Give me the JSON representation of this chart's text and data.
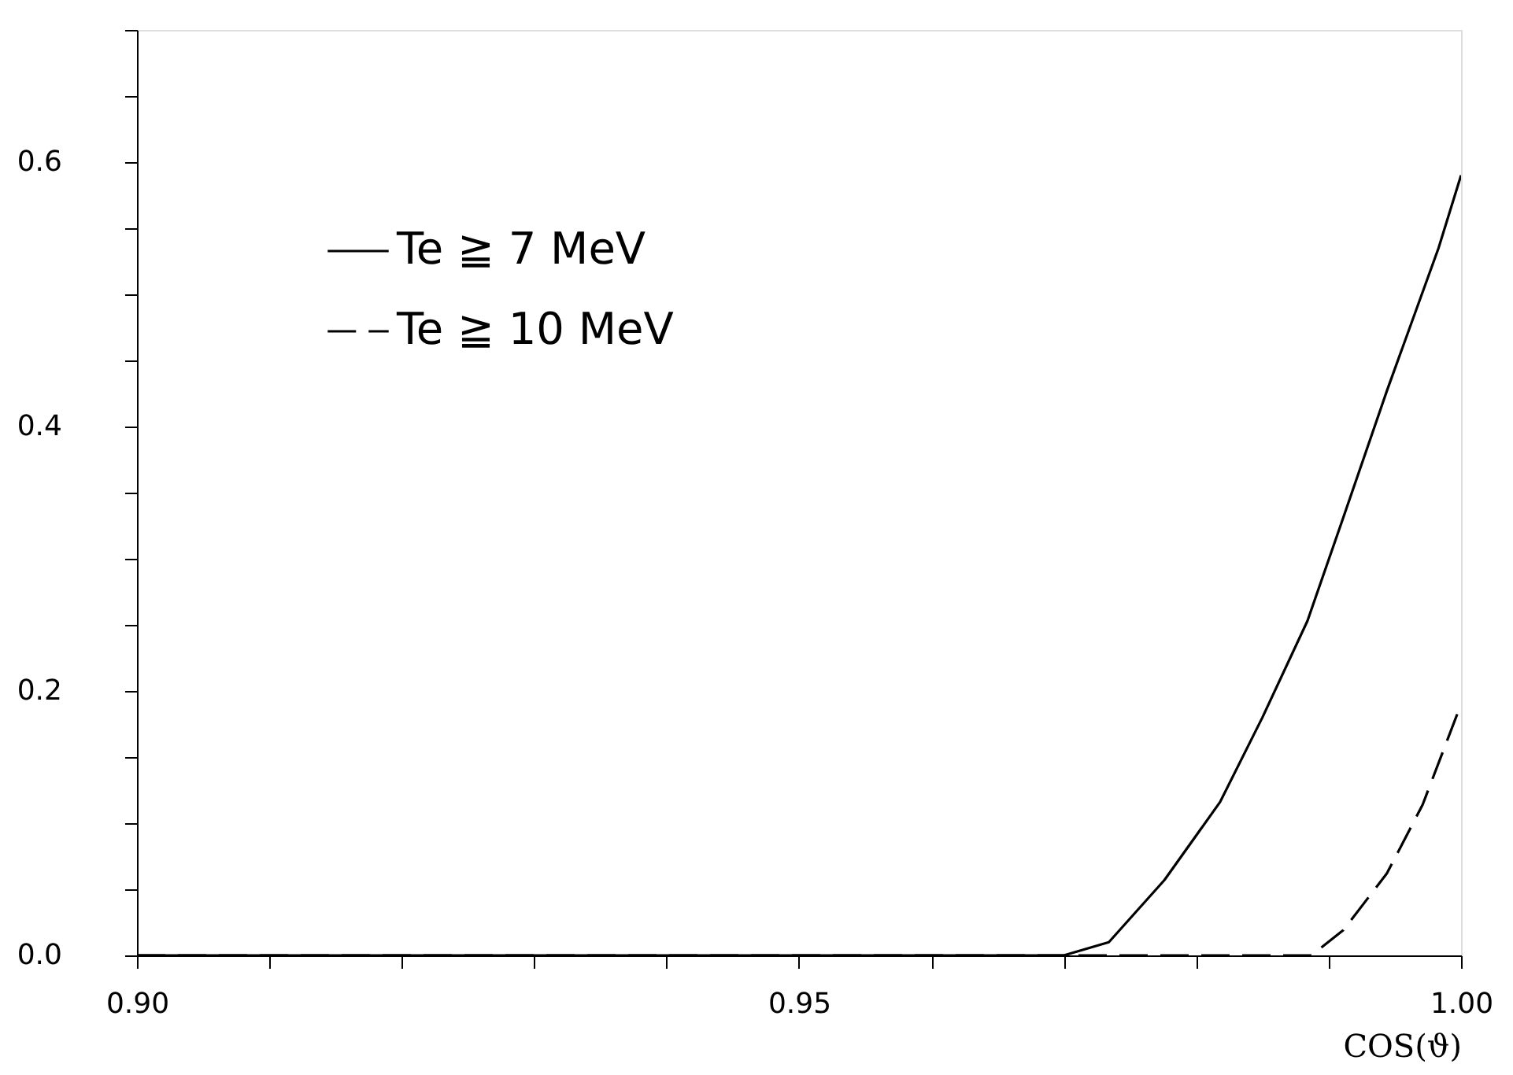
{
  "chart_data": {
    "type": "line",
    "xlabel": "COS(ϑ)",
    "xlim": [
      0.9,
      1.0
    ],
    "ylim": [
      0,
      0.7
    ],
    "xticks": [
      {
        "value": 0.9,
        "label": "0.90"
      },
      {
        "value": 0.91,
        "label": null
      },
      {
        "value": 0.92,
        "label": null
      },
      {
        "value": 0.93,
        "label": null
      },
      {
        "value": 0.94,
        "label": null
      },
      {
        "value": 0.95,
        "label": "0.95"
      },
      {
        "value": 0.96,
        "label": null
      },
      {
        "value": 0.97,
        "label": null
      },
      {
        "value": 0.98,
        "label": null
      },
      {
        "value": 0.99,
        "label": null
      },
      {
        "value": 1.0,
        "label": "1.00"
      }
    ],
    "yticks": [
      {
        "value": 0,
        "label": "0.0"
      },
      {
        "value": 0.05,
        "label": null
      },
      {
        "value": 0.1,
        "label": null
      },
      {
        "value": 0.15,
        "label": null
      },
      {
        "value": 0.2,
        "label": "0.2"
      },
      {
        "value": 0.25,
        "label": null
      },
      {
        "value": 0.3,
        "label": null
      },
      {
        "value": 0.35,
        "label": null
      },
      {
        "value": 0.4,
        "label": "0.4"
      },
      {
        "value": 0.45,
        "label": null
      },
      {
        "value": 0.5,
        "label": null
      },
      {
        "value": 0.55,
        "label": null
      },
      {
        "value": 0.6,
        "label": "0.6"
      },
      {
        "value": 0.65,
        "label": null
      },
      {
        "value": 0.7,
        "label": null
      }
    ],
    "grid": false,
    "legend": "top left",
    "marker": "none",
    "series": [
      {
        "name": "Te ≧ 7 MeV",
        "color": "#000000",
        "line_style": "solid",
        "x": [
          0.9,
          0.93,
          0.96,
          0.97,
          0.9734,
          0.9776,
          0.9818,
          0.985,
          0.9884,
          0.9911,
          0.9944,
          0.9983,
          1.0
        ],
        "values": [
          0,
          0,
          0,
          0,
          0.01,
          0.057,
          0.116,
          0.18,
          0.253,
          0.331,
          0.427,
          0.535,
          0.59
        ]
      },
      {
        "name": "Te ≧ 10 MeV",
        "color": "#000000",
        "line_style": "dashed",
        "x": [
          0.9,
          0.95,
          0.98,
          0.9887,
          0.9911,
          0.9944,
          0.9971,
          1.0
        ],
        "values": [
          0,
          0,
          0,
          0,
          0.019,
          0.062,
          0.114,
          0.19
        ]
      }
    ]
  }
}
